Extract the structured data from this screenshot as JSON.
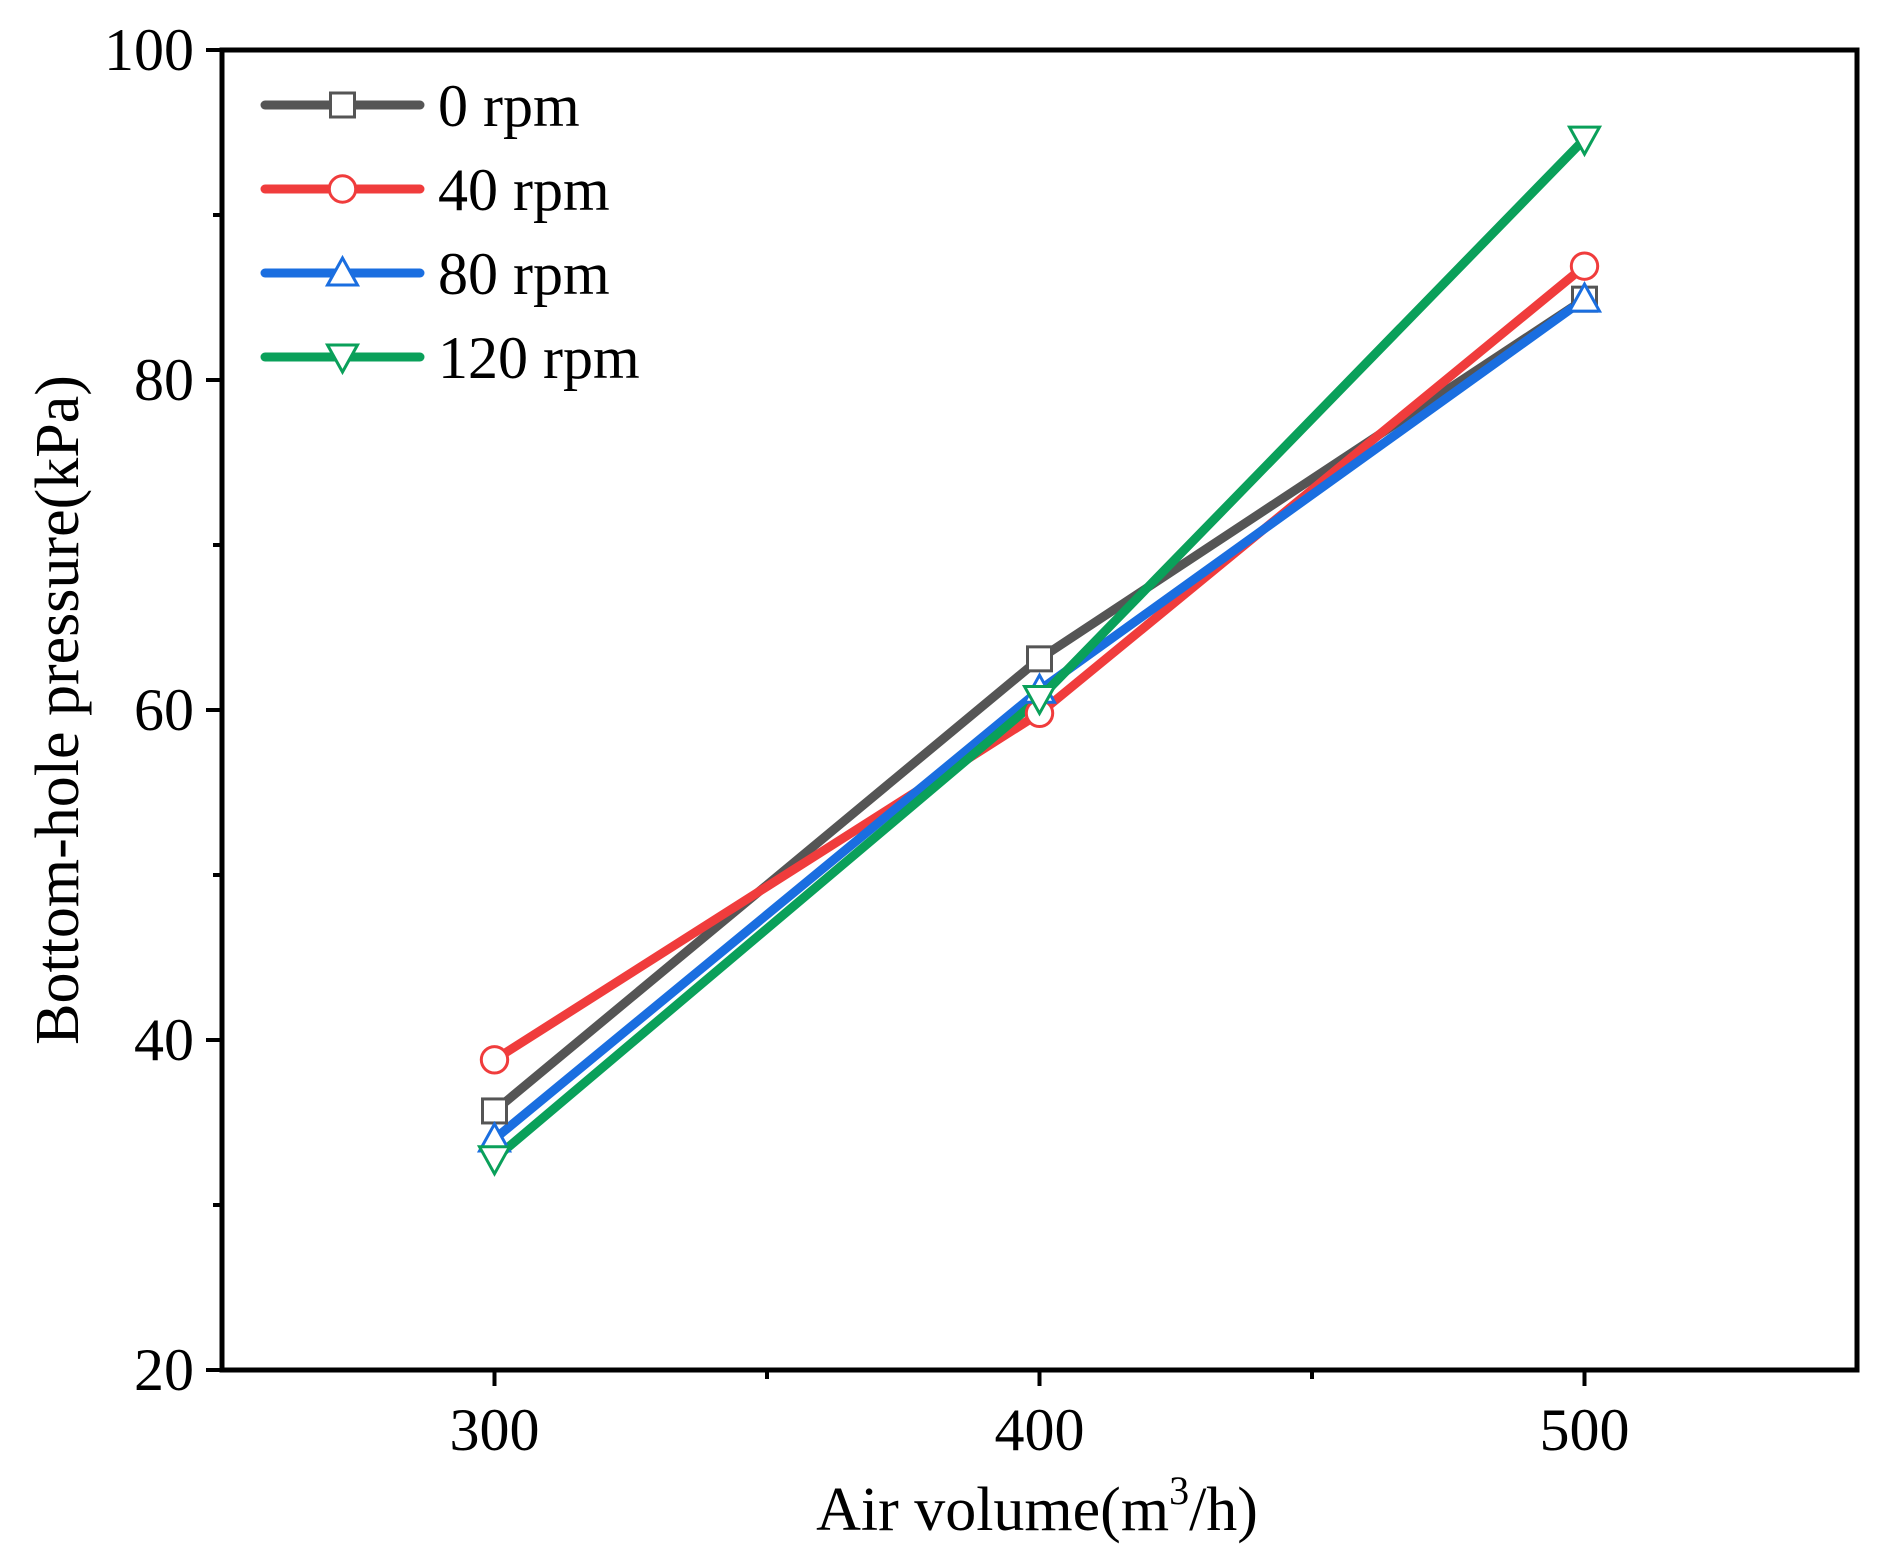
{
  "chart_data": {
    "type": "line",
    "title": "",
    "xlabel": "Air volume(m",
    "xlabel_sup": "3",
    "xlabel_tail": "/h)",
    "ylabel": "Bottom-hole pressure(kPa)",
    "xlim": [
      250,
      550
    ],
    "ylim": [
      20,
      100
    ],
    "x_ticks": [
      300,
      400,
      500
    ],
    "y_ticks": [
      20,
      40,
      60,
      80,
      100
    ],
    "grid": false,
    "legend_position": "top-left",
    "x": [
      300,
      400,
      500
    ],
    "series": [
      {
        "name": "0 rpm",
        "values": [
          35.7,
          63.1,
          84.9
        ],
        "color": "#555555",
        "marker": "square"
      },
      {
        "name": "40 rpm",
        "values": [
          38.8,
          59.8,
          86.9
        ],
        "color": "#f03c3c",
        "marker": "circle"
      },
      {
        "name": "80 rpm",
        "values": [
          34.0,
          61.2,
          84.9
        ],
        "color": "#1a6ee0",
        "marker": "triangle-up"
      },
      {
        "name": "120 rpm",
        "values": [
          32.8,
          60.7,
          94.6
        ],
        "color": "#0aa05a",
        "marker": "triangle-down"
      }
    ]
  }
}
